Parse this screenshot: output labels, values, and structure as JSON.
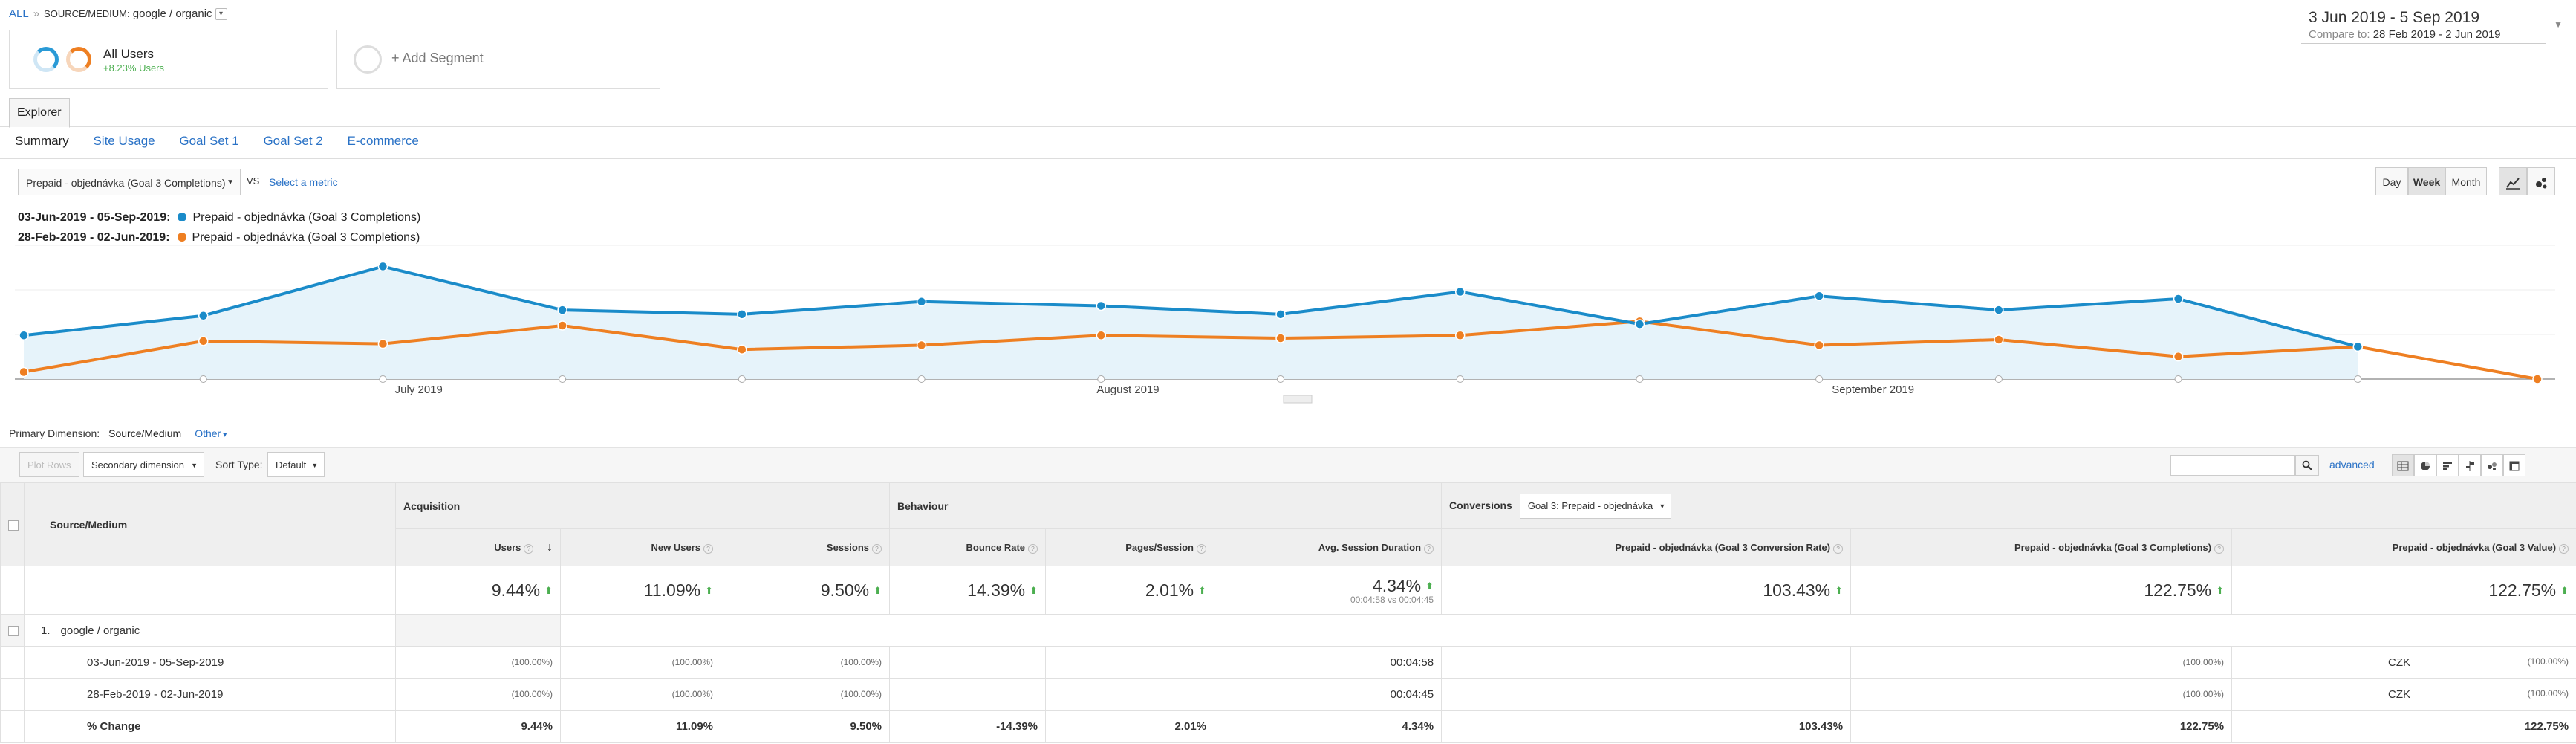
{
  "breadcrumb": {
    "all": "ALL",
    "separator": "»",
    "label": "SOURCE/MEDIUM:",
    "value": "google / organic"
  },
  "segments": [
    {
      "title": "All Users",
      "subtitle": "+8.23% Users"
    },
    {
      "title": "+ Add Segment"
    }
  ],
  "date_range": {
    "main": "3 Jun 2019 - 5 Sep 2019",
    "compare_label": "Compare to:",
    "compare": "28 Feb 2019 - 2 Jun 2019"
  },
  "tabs": {
    "explorer": "Explorer",
    "sub": [
      "Summary",
      "Site Usage",
      "Goal Set 1",
      "Goal Set 2",
      "E-commerce"
    ]
  },
  "metric": {
    "selected": "Prepaid - objednávka (Goal 3 Completions)",
    "vs": "VS",
    "select_metric": "Select a metric"
  },
  "period_buttons": [
    "Day",
    "Week",
    "Month"
  ],
  "legend": [
    {
      "range": "03-Jun-2019 - 05-Sep-2019:",
      "label": "Prepaid - objednávka (Goal 3 Completions)",
      "color": "#1a8bc9"
    },
    {
      "range": "28-Feb-2019 - 02-Jun-2019:",
      "label": "Prepaid - objednávka (Goal 3 Completions)",
      "color": "#ee7f22"
    }
  ],
  "chart_data": {
    "type": "line",
    "x_labels": [
      "July 2019",
      "August 2019",
      "September 2019"
    ],
    "series": [
      {
        "name": "03-Jun-2019 - 05-Sep-2019",
        "color": "#1a8bc9",
        "values": [
          31,
          45,
          80,
          49,
          46,
          55,
          52,
          46,
          62,
          39,
          59,
          49,
          57,
          23
        ]
      },
      {
        "name": "28-Feb-2019 - 02-Jun-2019",
        "color": "#ee7f22",
        "values": [
          5,
          27,
          25,
          38,
          21,
          24,
          31,
          29,
          31,
          41,
          24,
          28,
          16,
          23,
          0
        ]
      }
    ],
    "ylim": [
      0,
      95
    ],
    "grid": true
  },
  "primary_dimension": {
    "label": "Primary Dimension:",
    "current": "Source/Medium",
    "other": "Other"
  },
  "toolbar": {
    "plot_rows": "Plot Rows",
    "secondary": "Secondary dimension",
    "sort_type": "Sort Type:",
    "sort_default": "Default",
    "advanced": "advanced"
  },
  "table": {
    "dimension_header": "Source/Medium",
    "groups": {
      "acquisition": "Acquisition",
      "behaviour": "Behaviour",
      "conversions": "Conversions",
      "goal_select": "Goal 3: Prepaid - objednávka"
    },
    "columns": [
      "Users",
      "New Users",
      "Sessions",
      "Bounce Rate",
      "Pages/Session",
      "Avg. Session Duration",
      "Prepaid - objednávka (Goal 3 Conversion Rate)",
      "Prepaid - objednávka (Goal 3 Completions)",
      "Prepaid - objednávka (Goal 3 Value)"
    ],
    "totals": [
      "9.44%",
      "11.09%",
      "9.50%",
      "14.39%",
      "2.01%",
      "4.34%",
      "103.43%",
      "122.75%",
      "122.75%"
    ],
    "totals_sub": "00:04:58 vs 00:04:45",
    "row_num": "1.",
    "row_label": "google / organic",
    "period1": {
      "label": "03-Jun-2019 - 05-Sep-2019",
      "users": "(100.00%)",
      "new_users": "(100.00%)",
      "sessions": "(100.00%)",
      "duration": "00:04:58",
      "completions": "(100.00%)",
      "value_cur": "CZK",
      "value": "(100.00%)"
    },
    "period2": {
      "label": "28-Feb-2019 - 02-Jun-2019",
      "users": "(100.00%)",
      "new_users": "(100.00%)",
      "sessions": "(100.00%)",
      "duration": "00:04:45",
      "completions": "(100.00%)",
      "value_cur": "CZK",
      "value": "(100.00%)"
    },
    "change": {
      "label": "% Change",
      "values": [
        "9.44%",
        "11.09%",
        "9.50%",
        "-14.39%",
        "2.01%",
        "4.34%",
        "103.43%",
        "122.75%",
        "122.75%"
      ]
    }
  }
}
